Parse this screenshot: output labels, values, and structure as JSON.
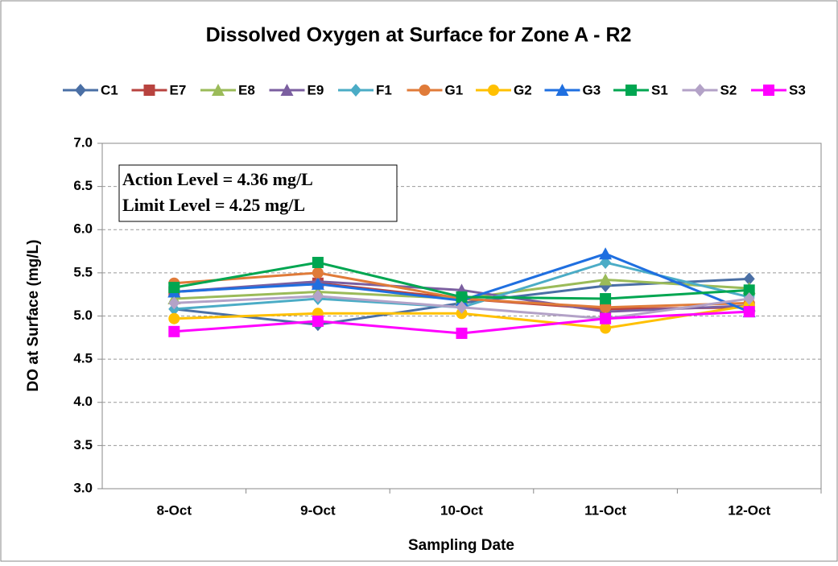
{
  "chart_data": {
    "type": "line",
    "title": "Dissolved Oxygen at Surface for Zone A - R2",
    "x_label": "Sampling Date",
    "y_label": "DO at Surface (mg/L)",
    "annotations": [
      "Action Level = 4.36 mg/L",
      "Limit Level = 4.25 mg/L"
    ],
    "categories": [
      "8-Oct",
      "9-Oct",
      "10-Oct",
      "11-Oct",
      "12-Oct"
    ],
    "ylim": [
      3,
      7
    ],
    "yticks": [
      {
        "value": 3,
        "label": "3.0"
      },
      {
        "value": 3.5,
        "label": "3.5"
      },
      {
        "value": 4,
        "label": "4.0"
      },
      {
        "value": 4.5,
        "label": "4.5"
      },
      {
        "value": 5,
        "label": "5.0"
      },
      {
        "value": 5.5,
        "label": "5.5"
      },
      {
        "value": 6,
        "label": "6.0"
      },
      {
        "value": 6.5,
        "label": "6.5"
      },
      {
        "value": 7,
        "label": "7.0"
      }
    ],
    "grid": true,
    "legend": "top",
    "series": [
      {
        "name": "C1",
        "color": "#4a6fa5",
        "marker": "diamond",
        "values": [
          5.08,
          4.9,
          5.15,
          5.35,
          5.43
        ]
      },
      {
        "name": "E7",
        "color": "#b8433f",
        "marker": "square",
        "values": [
          5.28,
          5.38,
          5.2,
          5.08,
          5.1
        ]
      },
      {
        "name": "E8",
        "color": "#9bbb59",
        "marker": "triangle",
        "values": [
          5.2,
          5.28,
          5.2,
          5.42,
          5.32
        ]
      },
      {
        "name": "E9",
        "color": "#7b5fa0",
        "marker": "triangle",
        "values": [
          5.28,
          5.4,
          5.3,
          5.05,
          5.12
        ]
      },
      {
        "name": "F1",
        "color": "#4bacc6",
        "marker": "diamond",
        "values": [
          5.08,
          5.2,
          5.1,
          5.62,
          5.22
        ]
      },
      {
        "name": "G1",
        "color": "#e07b39",
        "marker": "circle",
        "values": [
          5.38,
          5.5,
          5.2,
          5.1,
          5.15
        ]
      },
      {
        "name": "G2",
        "color": "#ffc000",
        "marker": "circle",
        "values": [
          4.97,
          5.03,
          5.03,
          4.86,
          5.12
        ]
      },
      {
        "name": "G3",
        "color": "#1f6fe0",
        "marker": "triangle",
        "values": [
          5.28,
          5.37,
          5.18,
          5.72,
          5.05
        ]
      },
      {
        "name": "S1",
        "color": "#00a651",
        "marker": "square",
        "values": [
          5.33,
          5.62,
          5.22,
          5.2,
          5.3
        ]
      },
      {
        "name": "S2",
        "color": "#b3a2c7",
        "marker": "diamond",
        "values": [
          5.15,
          5.23,
          5.1,
          4.97,
          5.2
        ]
      },
      {
        "name": "S3",
        "color": "#ff00ff",
        "marker": "square",
        "values": [
          4.82,
          4.94,
          4.8,
          4.97,
          5.05
        ]
      }
    ]
  }
}
